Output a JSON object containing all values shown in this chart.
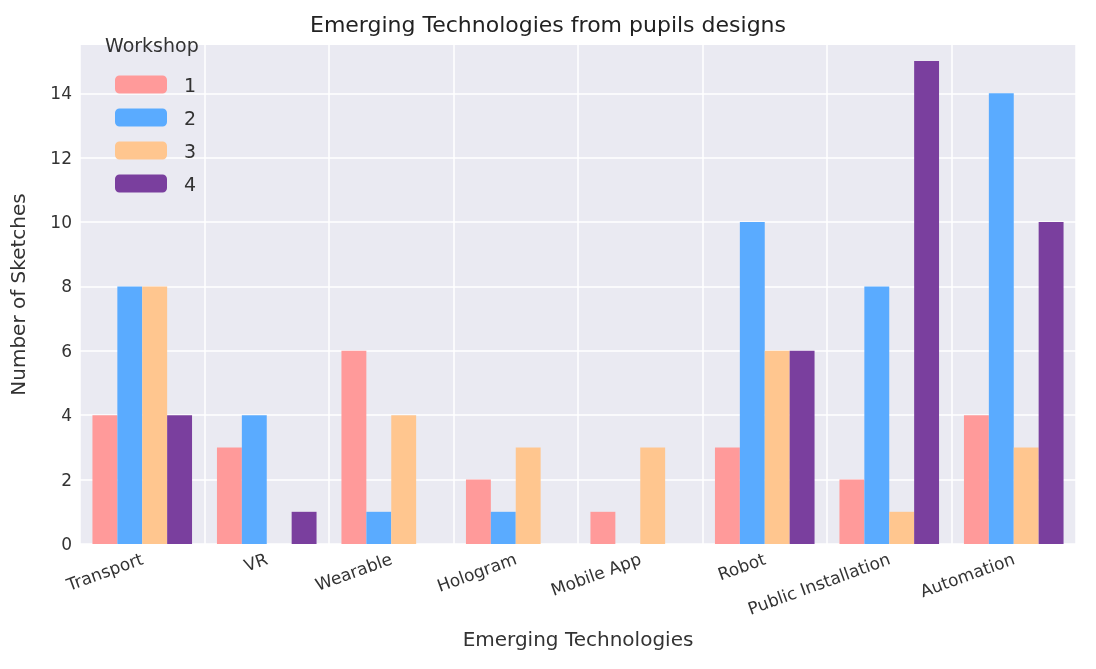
{
  "chart_data": {
    "type": "bar",
    "title": "Emerging Technologies from pupils designs",
    "xlabel": "Emerging Technologies",
    "ylabel": "Number of Sketches",
    "legend_title": "Workshop",
    "categories": [
      "Transport",
      "VR",
      "Wearable",
      "Hologram",
      "Mobile App",
      "Robot",
      "Public Installation",
      "Automation"
    ],
    "series": [
      {
        "name": "1",
        "color": "#ff9a9a",
        "values": [
          4,
          3,
          6,
          2,
          1,
          3,
          2,
          4
        ]
      },
      {
        "name": "2",
        "color": "#5aabff",
        "values": [
          8,
          4,
          1,
          1,
          0,
          10,
          8,
          14
        ]
      },
      {
        "name": "3",
        "color": "#ffc68f",
        "values": [
          8,
          0,
          4,
          3,
          3,
          6,
          1,
          3
        ]
      },
      {
        "name": "4",
        "color": "#7a3f9e",
        "values": [
          4,
          1,
          0,
          0,
          0,
          6,
          15,
          10
        ]
      }
    ],
    "ylim": [
      0,
      15.5
    ],
    "yticks": [
      0,
      2,
      4,
      6,
      8,
      10,
      12,
      14
    ],
    "grid": true,
    "legend": "top left"
  }
}
